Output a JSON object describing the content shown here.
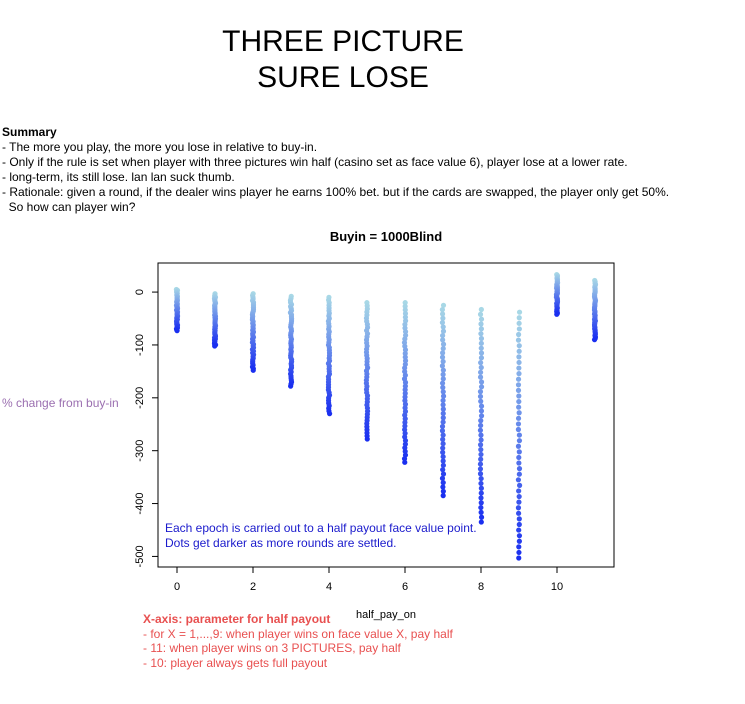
{
  "title": [
    "THREE PICTURE",
    "SURE LOSE"
  ],
  "summary": {
    "heading": "Summary",
    "lines": [
      "- The more you play, the more you lose in relative to buy-in.",
      "- Only if the rule is set when player with three pictures win half (casino set as face value 6), player lose at a lower rate.",
      "- long-term, its still lose. lan lan suck thumb.",
      "- Rationale: given a round, if the dealer wins player he earns 100% bet. but if the cards are swapped, the player only get 50%.",
      "  So how can player win?"
    ]
  },
  "y_outer_label": "% change from buy-in",
  "notes": {
    "heading": "X-axis: parameter for half payout",
    "lines": [
      "- for  X = 1,...,9: when player wins on face value X, pay half",
      "- 11: when player wins on 3 PICTURES, pay half",
      "- 10: player always gets full payout"
    ]
  },
  "colors": {
    "light": "#a8d8e6",
    "dark": "#1a2ff0",
    "annotation": "#1a1acc",
    "outer_label": "#9b6fb0",
    "notes": "#e85050"
  },
  "chart_data": {
    "type": "scatter",
    "title": "Buyin = 1000Blind",
    "xlabel": "half_pay_on",
    "ylabel": "",
    "xlim": [
      -0.5,
      11.5
    ],
    "ylim": [
      -520,
      55
    ],
    "x_ticks": [
      0,
      2,
      4,
      6,
      8,
      10
    ],
    "y_ticks": [
      0,
      -100,
      -200,
      -300,
      -400,
      -500
    ],
    "annotation": [
      "Each epoch is carried out to a half payout face value point.",
      "Dots get darker as more rounds are settled."
    ],
    "series": [
      {
        "x": 0,
        "y_max": 5,
        "y_min": -73
      },
      {
        "x": 1,
        "y_max": -3,
        "y_min": -102
      },
      {
        "x": 2,
        "y_max": -3,
        "y_min": -148
      },
      {
        "x": 3,
        "y_max": -8,
        "y_min": -178
      },
      {
        "x": 4,
        "y_max": -10,
        "y_min": -230
      },
      {
        "x": 5,
        "y_max": -20,
        "y_min": -278
      },
      {
        "x": 6,
        "y_max": -20,
        "y_min": -322
      },
      {
        "x": 7,
        "y_max": -25,
        "y_min": -385
      },
      {
        "x": 8,
        "y_max": -33,
        "y_min": -435
      },
      {
        "x": 9,
        "y_max": -38,
        "y_min": -503
      },
      {
        "x": 10,
        "y_max": 33,
        "y_min": -42
      },
      {
        "x": 11,
        "y_max": 22,
        "y_min": -90
      }
    ]
  }
}
